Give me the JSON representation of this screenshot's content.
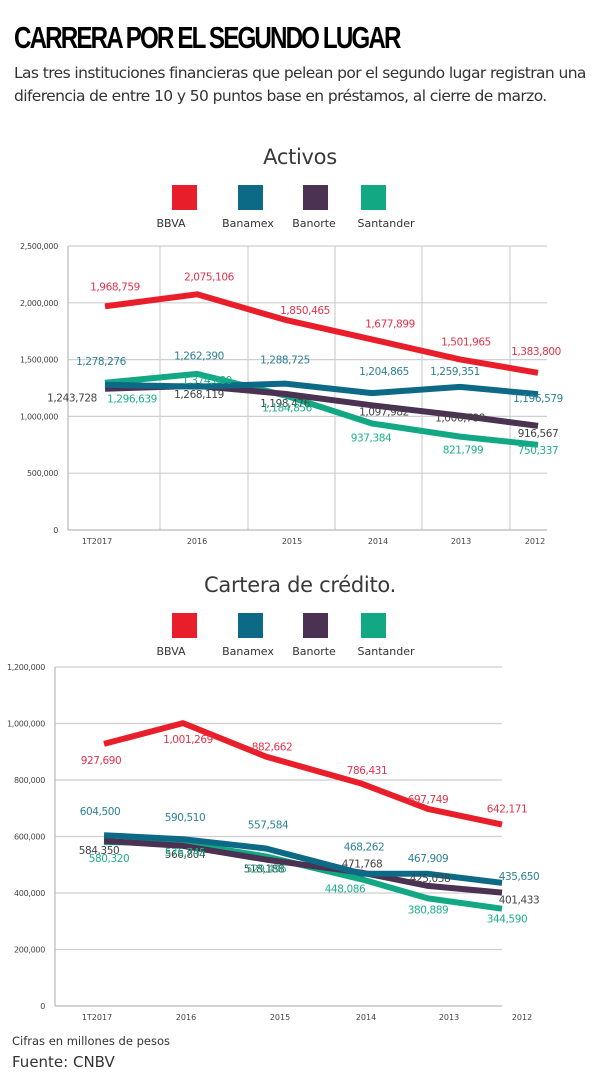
{
  "header": {
    "title": "CARRERA POR EL SEGUNDO LUGAR",
    "subtitle": "Las tres instituciones financieras que pelean por el segundo lugar registran una diferencia de entre 10 y 50 puntos base en préstamos, al cierre de marzo."
  },
  "colors": {
    "BBVA": "#e81f2a",
    "Banamex": "#0d6a87",
    "Banorte": "#4b3152",
    "Santander": "#12a883",
    "label_BBVA": "#e3334b",
    "label_Banamex": "#2d8194",
    "label_Banorte": "#444444",
    "label_Santander": "#1db08b",
    "grid": "#cfcfd3",
    "axis_text": "#444444"
  },
  "chart_data": [
    {
      "type": "line",
      "title": "Activos",
      "categories": [
        "1T2017",
        "2016",
        "2015",
        "2014",
        "2013",
        "2012"
      ],
      "ylim": [
        0,
        2500000
      ],
      "yticks": [
        0,
        500000,
        1000000,
        1500000,
        2000000,
        2500000
      ],
      "ytick_labels": [
        "0",
        "500,000",
        "1,000,000",
        "1,500,000",
        "2,000,000",
        "2,500,000"
      ],
      "grid": "both",
      "legend_position": "top-center",
      "xlabel": "",
      "ylabel": "",
      "series": [
        {
          "name": "BBVA",
          "values": [
            1968759,
            2075106,
            1850465,
            1677899,
            1501965,
            1383800
          ],
          "labels": [
            "1,968,759",
            "2,075,106",
            "1,850,465",
            "1,677,899",
            "1,501,965",
            "1,383,800"
          ]
        },
        {
          "name": "Banamex",
          "values": [
            1278276,
            1262390,
            1288725,
            1204865,
            1259351,
            1196579
          ],
          "labels": [
            "1,278,276",
            "1,262,390",
            "1,288,725",
            "1,204,865",
            "1,259,351",
            "1,196,579"
          ]
        },
        {
          "name": "Banorte",
          "values": [
            1243728,
            1268119,
            1198476,
            1097982,
            1006788,
            916567
          ],
          "labels": [
            "1,243,728",
            "1,268,119",
            "1,198,476",
            "1,097,982",
            "1,006,788",
            "916,567"
          ]
        },
        {
          "name": "Santander",
          "values": [
            1296639,
            1374080,
            1184856,
            937384,
            821799,
            750337
          ],
          "labels": [
            "1,296,639",
            "1,374,080",
            "1,184,856",
            "937,384",
            "821,799",
            "750,337"
          ]
        }
      ]
    },
    {
      "type": "line",
      "title": "Cartera de crédito.",
      "categories": [
        "1T2017",
        "2016",
        "2015",
        "2014",
        "2013",
        "2012"
      ],
      "ylim": [
        0,
        1200000
      ],
      "yticks": [
        0,
        200000,
        400000,
        600000,
        800000,
        1000000,
        1200000
      ],
      "ytick_labels": [
        "0",
        "200,000",
        "400,000",
        "600,000",
        "800,000",
        "1,000,000",
        "1,200,000"
      ],
      "grid": "horizontal",
      "legend_position": "top-center",
      "xlabel": "",
      "ylabel": "",
      "series": [
        {
          "name": "BBVA",
          "values": [
            927690,
            1001269,
            882662,
            786431,
            697749,
            642171
          ],
          "labels": [
            "927,690",
            "1,001,269",
            "882,662",
            "786,431",
            "697,749",
            "642,171"
          ]
        },
        {
          "name": "Banamex",
          "values": [
            604500,
            590510,
            557584,
            468262,
            467909,
            435650
          ],
          "labels": [
            "604,500",
            "590,510",
            "557,584",
            "468,262",
            "467,909",
            "435,650"
          ]
        },
        {
          "name": "Banorte",
          "values": [
            584350,
            566804,
            518188,
            471768,
            425038,
            401433
          ],
          "labels": [
            "584,350",
            "566,804",
            "518,188",
            "471,768",
            "425,038",
            "401,433"
          ]
        },
        {
          "name": "Santander",
          "values": [
            580320,
            576745,
            529496,
            448086,
            380889,
            344590
          ],
          "labels": [
            "580,320",
            "576,745",
            "529,496",
            "448,086",
            "380,889",
            "344,590"
          ]
        }
      ]
    }
  ],
  "legend": [
    "BBVA",
    "Banamex",
    "Banorte",
    "Santander"
  ],
  "footer": {
    "note": "Cifras en millones de pesos",
    "source": "Fuente: CNBV"
  }
}
